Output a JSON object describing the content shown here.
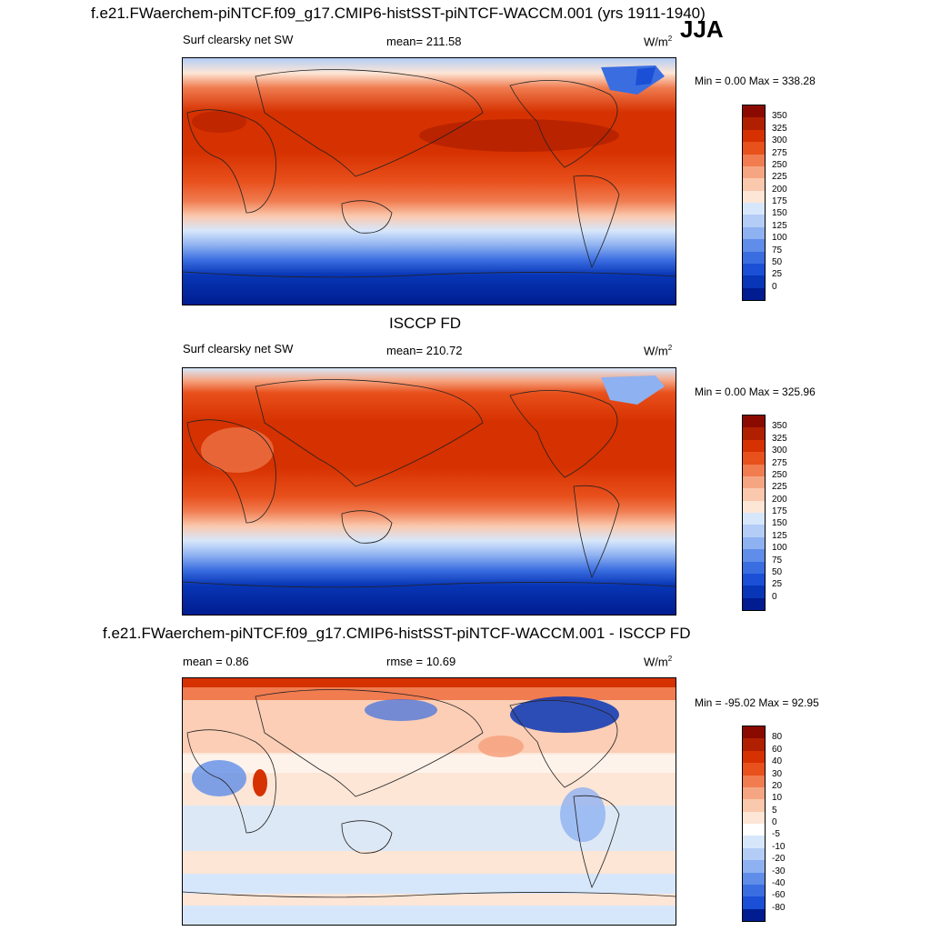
{
  "header": {
    "main_title": "f.e21.FWaerchem-piNTCF.f09_g17.CMIP6-histSST-piNTCF-WACCM.001 (yrs 1911-1940)",
    "season": "JJA"
  },
  "panels": [
    {
      "variable": "Surf clearsky net SW",
      "stat": "mean= 211.58",
      "units": "W/m",
      "units_sup": "2",
      "minmax": "Min =   0.00 Max = 338.28",
      "colorbar_ticks": [
        "350",
        "325",
        "300",
        "275",
        "250",
        "225",
        "200",
        "175",
        "150",
        "125",
        "100",
        "75",
        "50",
        "25",
        "0"
      ],
      "colorbar_colors": [
        "#8a0a00",
        "#b01f00",
        "#d63100",
        "#e8501c",
        "#f07c50",
        "#f6a582",
        "#fac8ad",
        "#fde6d6",
        "#d7e7fb",
        "#b3cdf6",
        "#8eb1f1",
        "#5f8de9",
        "#3a6de0",
        "#1a4fd6",
        "#0836b6",
        "#001c90"
      ]
    },
    {
      "section_title": "ISCCP FD",
      "variable": "Surf clearsky net SW",
      "stat": "mean= 210.72",
      "units": "W/m",
      "units_sup": "2",
      "minmax": "Min =   0.00 Max = 325.96",
      "colorbar_ticks": [
        "350",
        "325",
        "300",
        "275",
        "250",
        "225",
        "200",
        "175",
        "150",
        "125",
        "100",
        "75",
        "50",
        "25",
        "0"
      ],
      "colorbar_colors": [
        "#8a0a00",
        "#b01f00",
        "#d63100",
        "#e8501c",
        "#f07c50",
        "#f6a582",
        "#fac8ad",
        "#fde6d6",
        "#d7e7fb",
        "#b3cdf6",
        "#8eb1f1",
        "#5f8de9",
        "#3a6de0",
        "#1a4fd6",
        "#0836b6",
        "#001c90"
      ]
    },
    {
      "section_title": "f.e21.FWaerchem-piNTCF.f09_g17.CMIP6-histSST-piNTCF-WACCM.001 - ISCCP FD",
      "stat_left": "mean =   0.86",
      "stat": "rmse =  10.69",
      "units": "W/m",
      "units_sup": "2",
      "minmax": "Min = -95.02 Max =  92.95",
      "colorbar_ticks": [
        "80",
        "60",
        "40",
        "30",
        "20",
        "10",
        "5",
        "0",
        "-5",
        "-10",
        "-20",
        "-30",
        "-40",
        "-60",
        "-80"
      ],
      "colorbar_colors": [
        "#8a0a00",
        "#b01f00",
        "#d63100",
        "#e8501c",
        "#f07c50",
        "#f6a582",
        "#fac8ad",
        "#fde6d6",
        "#ffffff",
        "#d7e7fb",
        "#b3cdf6",
        "#8eb1f1",
        "#5f8de9",
        "#3a6de0",
        "#1a4fd6",
        "#001c90"
      ]
    }
  ]
}
